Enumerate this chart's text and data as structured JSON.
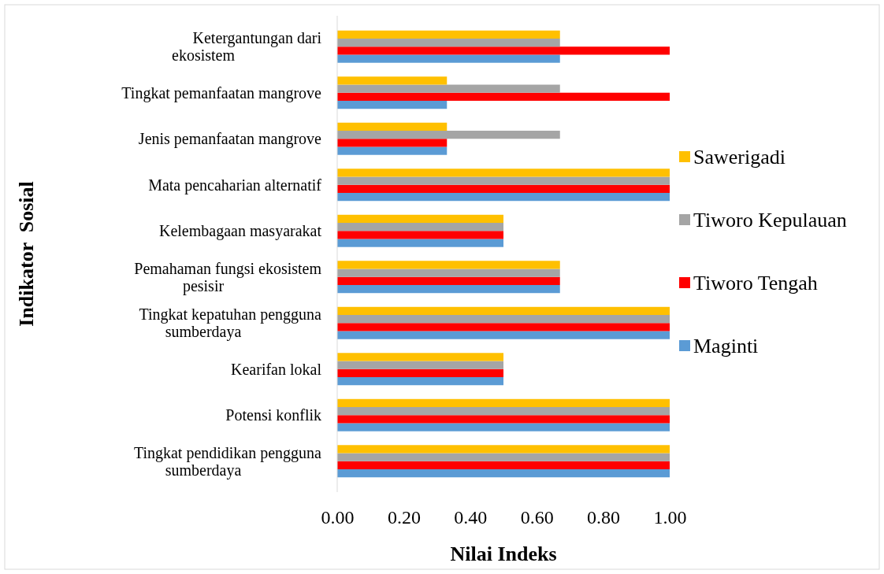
{
  "chart_data": {
    "type": "bar",
    "orientation": "horizontal",
    "xlabel": "Nilai Indeks",
    "ylabel": "Indikator  Sosial",
    "categories": [
      "Ketergantungan dari ekosistem",
      "Tingkat pemanfaatan mangrove",
      "Jenis pemanfaatan mangrove",
      "Mata pencaharian alternatif",
      "Kelembagaan masyarakat",
      "Pemahaman fungsi ekosistem pesisir",
      "Tingkat kepatuhan pengguna sumberdaya",
      "Kearifan lokal",
      "Potensi konflik",
      "Tingkat pendidikan pengguna sumberdaya"
    ],
    "series": [
      {
        "name": "Maginti",
        "color": "#5b9bd5",
        "values": [
          0.67,
          0.33,
          0.33,
          1,
          0.5,
          0.67,
          1,
          0.5,
          1,
          1
        ]
      },
      {
        "name": "Tiworo Tengah",
        "color": "#ff0000",
        "values": [
          1,
          1,
          0.33,
          1,
          0.5,
          0.67,
          1,
          0.5,
          1,
          1
        ]
      },
      {
        "name": "Tiworo Kepulauan",
        "color": "#a5a5a5",
        "values": [
          0.67,
          0.67,
          0.67,
          1,
          0.5,
          0.67,
          1,
          0.5,
          1,
          1
        ]
      },
      {
        "name": "Sawerigadi",
        "color": "#ffc000",
        "values": [
          0.67,
          0.33,
          0.33,
          1,
          0.5,
          0.67,
          1,
          0.5,
          1,
          1
        ]
      }
    ],
    "xlim": [
      0,
      1
    ],
    "xticks": [
      {
        "value": 0,
        "label": "0.00"
      },
      {
        "value": 0.2,
        "label": "0.20"
      },
      {
        "value": 0.4,
        "label": "0.40"
      },
      {
        "value": 0.6,
        "label": "0.60"
      },
      {
        "value": 0.8,
        "label": "0.80"
      },
      {
        "value": 1,
        "label": "1.00"
      }
    ],
    "grid": false,
    "legend": "right"
  }
}
